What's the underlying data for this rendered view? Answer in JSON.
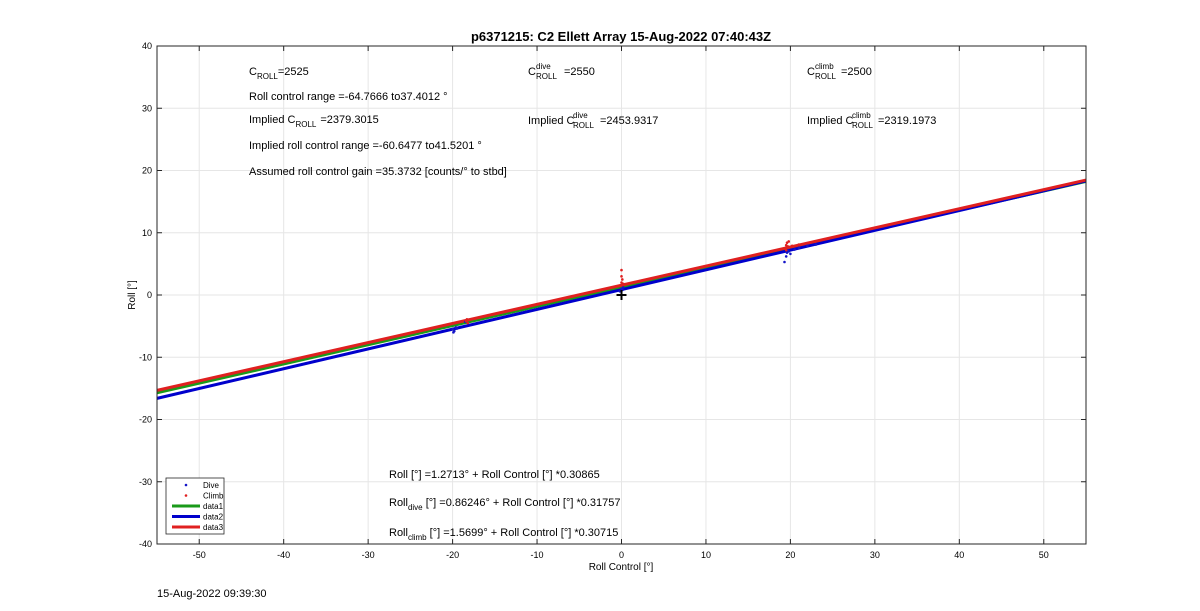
{
  "timestamp": "15-Aug-2022 09:39:30",
  "colors": {
    "dive": "#1515c8",
    "climb": "#e02020",
    "data1": "#1a9a1a",
    "data2": "#0000cc",
    "data3": "#e02020",
    "grid": "#e6e6e6",
    "axis": "#262626"
  },
  "chart_data": {
    "type": "scatter",
    "title": "p6371215: C2 Ellett Array 15-Aug-2022 07:40:43Z",
    "xlabel": "Roll Control [°]",
    "ylabel": "Roll [°]",
    "xlim": [
      -55,
      55
    ],
    "ylim": [
      -40,
      40
    ],
    "xticks": [
      -50,
      -40,
      -30,
      -20,
      -10,
      0,
      10,
      20,
      30,
      40,
      50
    ],
    "yticks": [
      -40,
      -30,
      -20,
      -10,
      0,
      10,
      20,
      30,
      40
    ],
    "grid": true,
    "legend_position": "bottom-left",
    "series": [
      {
        "name": "Dive",
        "kind": "points",
        "color": "#1515c8",
        "x": [
          -20,
          -19.8,
          -19.6,
          -19.9,
          -19.5,
          -18.5,
          -0.2,
          0,
          0.1,
          0.2,
          19.3,
          19.5,
          19.6,
          19.7,
          19.8,
          20,
          20.5,
          21,
          22,
          23
        ],
        "y": [
          -5.5,
          -5.8,
          -5.2,
          -6.0,
          -5.4,
          -4.3,
          0.6,
          1.0,
          0.8,
          1.2,
          5.3,
          6.2,
          6.8,
          7.2,
          7.0,
          6.6,
          7.3,
          7.6,
          7.9,
          8.1
        ]
      },
      {
        "name": "Climb",
        "kind": "points",
        "color": "#e02020",
        "x": [
          -18.4,
          -18.3,
          -18.2,
          -0.1,
          0,
          0.1,
          0,
          0.2,
          0,
          19.4,
          19.5,
          19.6,
          19.7,
          19.5,
          19.8,
          20.2,
          21
        ],
        "y": [
          -4.2,
          -3.9,
          -4.5,
          1.5,
          2.0,
          2.5,
          3.0,
          1.8,
          4.0,
          7.5,
          8.0,
          8.4,
          7.8,
          7.2,
          8.6,
          7.9,
          8.1
        ]
      },
      {
        "name": "data1",
        "kind": "line",
        "color": "#1a9a1a",
        "width": 3,
        "intercept": 1.2713,
        "slope": 0.30865
      },
      {
        "name": "data2",
        "kind": "line",
        "color": "#0000cc",
        "width": 3,
        "intercept": 0.86246,
        "slope": 0.31757
      },
      {
        "name": "data3",
        "kind": "line",
        "color": "#e02020",
        "width": 3,
        "intercept": 1.5699,
        "slope": 0.30715
      }
    ],
    "marker": {
      "x": 0,
      "y": 0,
      "symbol": "+"
    },
    "annotations": {
      "c_roll": {
        "prefix": "C",
        "sub": "ROLL",
        "value": "=2525"
      },
      "c_roll_dive": {
        "prefix": "C",
        "sup": "dive",
        "sub": "ROLL",
        "value": "=2550"
      },
      "c_roll_climb": {
        "prefix": "C",
        "sup": "climb",
        "sub": "ROLL",
        "value": "=2500"
      },
      "roll_control_range": "Roll control range =-64.7666 to37.4012 °",
      "implied_c_roll": {
        "prefix": "Implied C",
        "sub": "ROLL",
        "value": "=2379.3015"
      },
      "implied_c_roll_dive": {
        "prefix": "Implied C",
        "sup": "dive",
        "sub": "ROLL",
        "value": "=2453.9317"
      },
      "implied_c_roll_climb": {
        "prefix": "Implied C",
        "sup": "climb",
        "sub": "ROLL",
        "value": "=2319.1973"
      },
      "implied_roll_range": "Implied roll control range =-60.6477 to41.5201 °",
      "assumed_gain": "Assumed roll control gain =35.3732 [counts/° to stbd]",
      "eq_all": {
        "prefix": "Roll [°] =1.2713° + Roll Control [°] *0.30865"
      },
      "eq_dive": {
        "prefix": "Roll",
        "sub": "dive",
        "rest": " [°] =0.86246° + Roll Control [°] *0.31757"
      },
      "eq_climb": {
        "prefix": "Roll",
        "sub": "climb",
        "rest": " [°] =1.5699° + Roll Control [°] *0.30715"
      }
    }
  }
}
